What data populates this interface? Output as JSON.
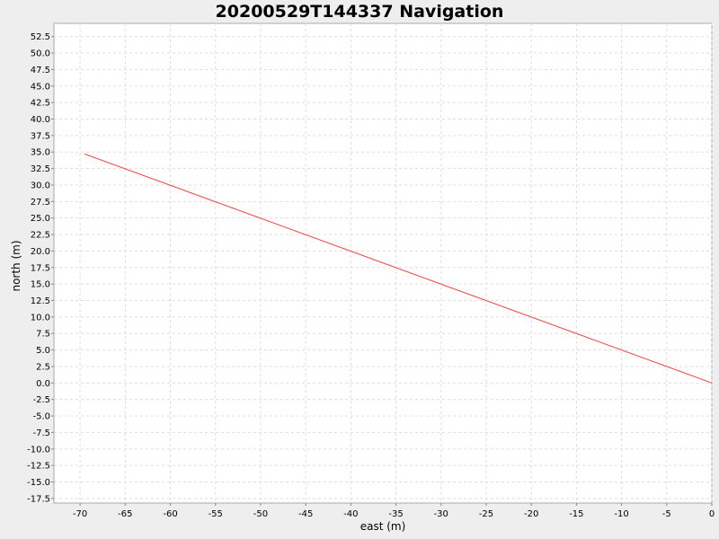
{
  "chart_data": {
    "type": "line",
    "title": "20200529T144337 Navigation",
    "xlabel": "east (m)",
    "ylabel": "north (m)",
    "xlim": [
      -72.9,
      0
    ],
    "ylim": [
      -18.2,
      54.5
    ],
    "xticks": [
      -70,
      -65,
      -60,
      -55,
      -50,
      -45,
      -40,
      -35,
      -30,
      -25,
      -20,
      -15,
      -10,
      -5,
      0
    ],
    "yticks": [
      -17.5,
      -15.0,
      -12.5,
      -10.0,
      -7.5,
      -5.0,
      -2.5,
      0.0,
      2.5,
      5.0,
      7.5,
      10.0,
      12.5,
      15.0,
      17.5,
      20.0,
      22.5,
      25.0,
      27.5,
      30.0,
      32.5,
      35.0,
      37.5,
      40.0,
      42.5,
      45.0,
      47.5,
      50.0,
      52.5
    ],
    "grid": true,
    "series": [
      {
        "color": "#ff4444",
        "x": [
          -69.5,
          0.0
        ],
        "y": [
          34.7,
          0.0
        ]
      }
    ]
  }
}
